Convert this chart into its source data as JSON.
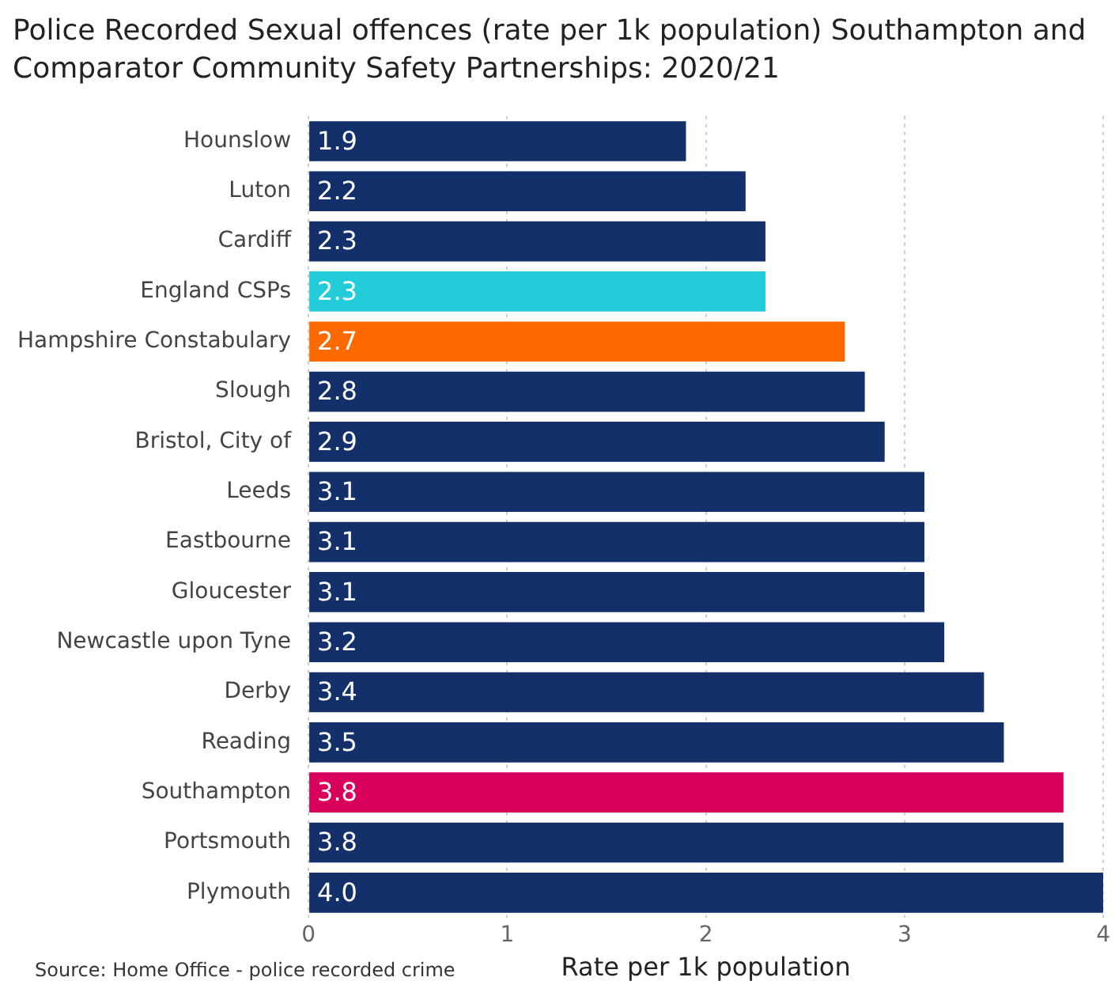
{
  "chart_data": {
    "type": "bar",
    "orientation": "horizontal",
    "title": "Police Recorded Sexual offences (rate per 1k population) Southampton and Comparator Community Safety Partnerships: 2020/21",
    "categories": [
      "Hounslow",
      "Luton",
      "Cardiff",
      "England CSPs",
      "Hampshire Constabulary",
      "Slough",
      "Bristol, City of",
      "Leeds",
      "Eastbourne",
      "Gloucester",
      "Newcastle upon Tyne",
      "Derby",
      "Reading",
      "Southampton",
      "Portsmouth",
      "Plymouth"
    ],
    "values": [
      1.9,
      2.2,
      2.3,
      2.3,
      2.7,
      2.8,
      2.9,
      3.1,
      3.1,
      3.1,
      3.2,
      3.4,
      3.5,
      3.8,
      3.8,
      4.0
    ],
    "colors": [
      "#13306b",
      "#13306b",
      "#13306b",
      "#22ccd8",
      "#ff6a00",
      "#13306b",
      "#13306b",
      "#13306b",
      "#13306b",
      "#13306b",
      "#13306b",
      "#13306b",
      "#13306b",
      "#d9005b",
      "#13306b",
      "#13306b"
    ],
    "value_labels": [
      "1.9",
      "2.2",
      "2.3",
      "2.3",
      "2.7",
      "2.8",
      "2.9",
      "3.1",
      "3.1",
      "3.1",
      "3.2",
      "3.4",
      "3.5",
      "3.8",
      "3.8",
      "4.0"
    ],
    "xlim": [
      0,
      4
    ],
    "xticks": [
      0,
      1,
      2,
      3,
      4
    ],
    "xlabel": "Rate per 1k population",
    "grid": "x",
    "annotations": [
      "Source: Home Office - police recorded crime"
    ]
  }
}
